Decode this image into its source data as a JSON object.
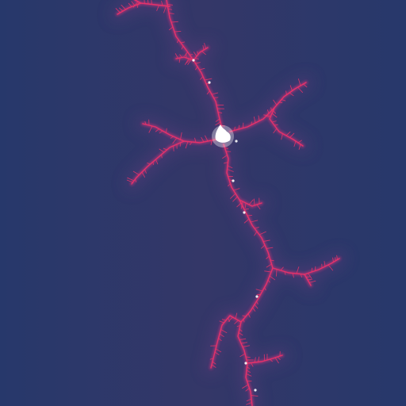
{
  "image": {
    "subject": "mandelbrot-filament-zoom",
    "palette": {
      "background_edge": "#27386b",
      "background_mid": "#343768",
      "glow": "#5a3a7a",
      "filament": "#e8336a",
      "filament_soft": "#b23275",
      "minibrot": "#ffffff"
    }
  }
}
